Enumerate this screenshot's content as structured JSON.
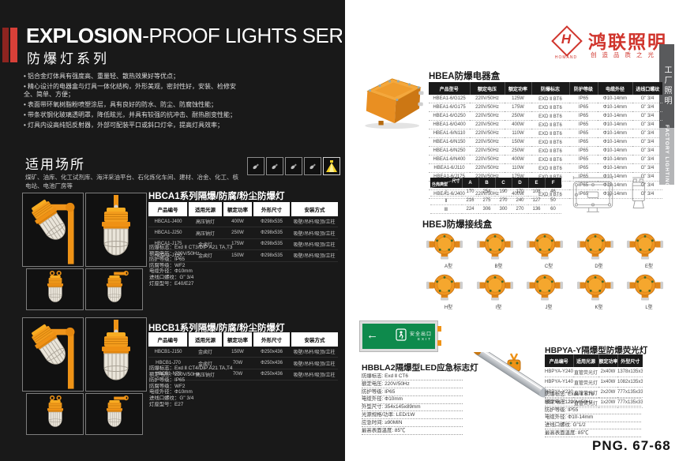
{
  "page": {
    "title_en_bold": "EXPLOSION",
    "title_en_rest": "-PROOF LIGHTS SERIES",
    "title_cn": "防爆灯系列",
    "page_number": "PNG. 67-68"
  },
  "brand": {
    "logo_letter": "H",
    "name_en": "HOMAND",
    "name_cn": "鸿联照明",
    "tagline": "创造品质之光"
  },
  "side_tab": {
    "cn": "工厂照明",
    "en": "FACTORY LIGHTING"
  },
  "features": [
    "铝合金灯体具有强度高、重量轻、散热效果好等优点；",
    "精心设计的电器盒与灯具一体化结构，外形美观，密封性好，安装、检修安全、简单、方便；",
    "表面带环氧树脂粉喷塑涂层，具有良好的防水、防尘、防腐蚀性能；",
    "带条状钢化玻璃透明罩，降低眩光，并具有较强的抗冲击、耐热剧变性能；",
    "灯具内设高纯铝反射器，外部可配装平口或斜口灯伞，提高灯具效率；"
  ],
  "applications": {
    "heading": "适用场所",
    "text": "煤矿、油库、化工试剂库、海洋采油平台、石化炼化车间、建材、冶金、化工、核电站、电池厂房等"
  },
  "hbca1": {
    "title": "HBCA1系列隔爆/防腐/粉尘防爆灯",
    "headers": [
      "产品编号",
      "适用光源",
      "额定功率",
      "外形尺寸",
      "安装方式"
    ],
    "rows": [
      [
        "HBCA1-J400",
        "高压钠灯",
        "400W",
        "Φ298x535",
        "吸壁/吊杆/吸顶/立柱"
      ],
      [
        "HBCA1-J250",
        "高压钠灯",
        "250W",
        "Φ298x535",
        "吸壁/吊杆/吸顶/立柱"
      ],
      [
        "HBCA1-J175",
        "金卤灯",
        "175W",
        "Φ298x535",
        "吸壁/吊杆/吸顶/立柱"
      ],
      [
        "HBCA1-J150",
        "金卤灯",
        "150W",
        "Φ298x535",
        "吸壁/吊杆/吸顶/立柱"
      ]
    ],
    "specs": [
      "防爆标志：Exd Ⅱ CT3/DIP A21 TA,T3",
      "额定电压：220V/50Hz",
      "防护等级：IP65",
      "防腐等级：WF2",
      "电缆外径：Φ10mm",
      "进线口螺纹：G\" 3/4",
      "灯座型号：E40/E27"
    ]
  },
  "hbcb1": {
    "title": "HBCB1系列隔爆/防腐/粉尘防爆灯",
    "headers": [
      "产品编号",
      "适用光源",
      "额定功率",
      "外形尺寸",
      "安装方式"
    ],
    "rows": [
      [
        "HBCB1-J150",
        "金卤灯",
        "150W",
        "Φ250x436",
        "吸壁/吊杆/吸顶/立柱"
      ],
      [
        "HBCB1-J70",
        "金卤灯",
        "70W",
        "Φ250x436",
        "吸壁/吊杆/吸顶/立柱"
      ],
      [
        "HBCB1-N70",
        "高压钠灯",
        "70W",
        "Φ250x436",
        "吸壁/吊杆/吸顶/立柱"
      ]
    ],
    "specs": [
      "防爆标志：Exd Ⅱ CT4/DIP A21 TA,T4",
      "额定电压：220V/50Hz",
      "防护等级：IP65",
      "防腐等级：WF2",
      "电缆外径：Φ10mm",
      "进线口螺纹：G\" 3/4",
      "灯座型号：E27"
    ]
  },
  "hbea": {
    "title": "HBEA防爆电器盒",
    "headers": [
      "产品型号",
      "额定电压",
      "额定功率",
      "防爆标志",
      "防护等级",
      "电缆外径",
      "进线口螺纹"
    ],
    "rows": [
      [
        "HBEA1-6/G125",
        "220V/50Hz",
        "125W",
        "EXD Ⅱ BT6",
        "IP65",
        "Φ10-14mm",
        "G\" 3/4"
      ],
      [
        "HBEA1-6/G175",
        "220V/50Hz",
        "175W",
        "EXD Ⅱ BT6",
        "IP65",
        "Φ10-14mm",
        "G\" 3/4"
      ],
      [
        "HBEA1-6/G250",
        "220V/50Hz",
        "250W",
        "EXD Ⅱ BT6",
        "IP65",
        "Φ10-14mm",
        "G\" 3/4"
      ],
      [
        "HBEA1-6/G400",
        "220V/50Hz",
        "400W",
        "EXD Ⅱ BT6",
        "IP65",
        "Φ10-14mm",
        "G\" 3/4"
      ],
      [
        "HBEA1-6/N110",
        "220V/50Hz",
        "110W",
        "EXD Ⅱ BT6",
        "IP65",
        "Φ10-14mm",
        "G\" 3/4"
      ],
      [
        "HBEA1-6/N150",
        "220V/50Hz",
        "150W",
        "EXD Ⅱ BT6",
        "IP65",
        "Φ10-14mm",
        "G\" 3/4"
      ],
      [
        "HBEA1-6/N250",
        "220V/50Hz",
        "250W",
        "EXD Ⅱ BT6",
        "IP65",
        "Φ10-14mm",
        "G\" 3/4"
      ],
      [
        "HBEA1-6/N400",
        "220V/50Hz",
        "400W",
        "EXD Ⅱ BT6",
        "IP65",
        "Φ10-14mm",
        "G\" 3/4"
      ],
      [
        "HBEA1-6/J110",
        "220V/50Hz",
        "110W",
        "EXD Ⅱ BT6",
        "IP65",
        "Φ10-14mm",
        "G\" 3/4"
      ],
      [
        "HBEA1-6/J175",
        "220V/50Hz",
        "175W",
        "EXD Ⅱ BT6",
        "IP65",
        "Φ10-14mm",
        "G\" 3/4"
      ],
      [
        "HBEA1-6/J250",
        "220V/50Hz",
        "250W",
        "EXD Ⅱ BT6",
        "IP65",
        "Φ10-14mm",
        "G\" 3/4"
      ],
      [
        "HBEA1-6/J400",
        "220V/50Hz",
        "400W",
        "EXD Ⅱ BT6",
        "IP65",
        "Φ10-14mm",
        "G\" 3/4"
      ]
    ]
  },
  "enclosure_dims": {
    "corner_top": "尺寸",
    "corner_bottom": "外壳类型",
    "headers": [
      "A",
      "B",
      "C",
      "D",
      "E",
      "F"
    ],
    "rows": [
      [
        "Ⅰ",
        "170",
        "254",
        "190",
        "170",
        "108",
        "46"
      ],
      [
        "Ⅱ",
        "216",
        "275",
        "270",
        "240",
        "127",
        "50"
      ],
      [
        "Ⅲ",
        "224",
        "306",
        "300",
        "270",
        "136",
        "60"
      ]
    ]
  },
  "hbej": {
    "title": "HBEJ防爆接线盒",
    "types": [
      "A型",
      "B型",
      "C型",
      "D型",
      "E型",
      "H型",
      "I型",
      "J型",
      "K型",
      "L型"
    ]
  },
  "hbbla2": {
    "title": "HBBLA2隔爆型LED应急标志灯",
    "sign_text": "安全出口",
    "sign_sub": "EXIT",
    "sign_arrow": "←",
    "specs": [
      "防爆标志: Exd Ⅱ CT6",
      "额定电压: 220V/50Hz",
      "防护等级: IP65",
      "电缆外径: Φ10mm",
      "外型尺寸: 354x145x89mm",
      "光源规格/功率: LED/1W",
      "应急时间: ≥90MIN",
      "最高表面温度: 85℃"
    ]
  },
  "hbpya": {
    "title": "HBPYA-Y隔爆型防爆荧光灯",
    "headers": [
      "产品编号",
      "适用光源",
      "额定功率",
      "外型尺寸"
    ],
    "rows": [
      [
        "HBPYA-Y240",
        "直管荧光灯",
        "2x40W",
        "1378x135x330"
      ],
      [
        "HBPYA-Y140",
        "直管荧光灯",
        "1x40W",
        "1082x135x330"
      ],
      [
        "HBPYA-Y220",
        "直管荧光灯",
        "2x20W",
        "777x135x330"
      ],
      [
        "HBPYA-Y120",
        "直管荧光灯",
        "1x20W",
        "777x135x330"
      ]
    ],
    "specs": [
      "防爆标志: Exde Ⅱ BT6",
      "额定电压: 220V/50Hz",
      "防护等级: IP55",
      "电缆外径: Φ10-14mm",
      "进线口螺纹: G\"1/2",
      "最高表面温度: 85℃"
    ]
  },
  "colors": {
    "accent_red": "#d0342c",
    "lamp_orange": "#ef9420",
    "exit_green": "#0e8a4c",
    "panel_black": "#191919"
  }
}
